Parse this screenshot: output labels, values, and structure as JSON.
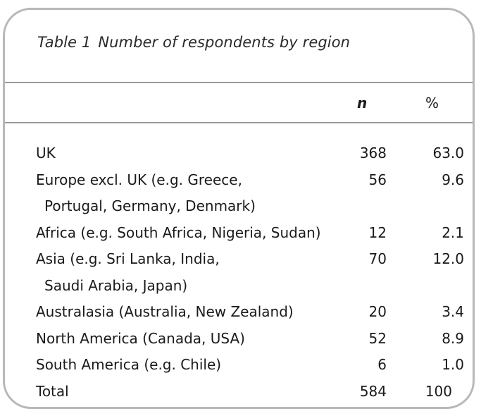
{
  "table": {
    "caption_number": "Table 1",
    "caption_title": "Number of respondents by region",
    "headers": {
      "region": "",
      "n": "n",
      "percent": "%"
    },
    "rows": [
      {
        "region_line1": "UK",
        "region_line2": "",
        "n": "368",
        "percent": "63.0"
      },
      {
        "region_line1": "Europe excl. UK (e.g. Greece,",
        "region_line2": "Portugal, Germany, Denmark)",
        "n": "56",
        "percent": "9.6"
      },
      {
        "region_line1": "Africa (e.g. South Africa, Nigeria, Sudan)",
        "region_line2": "",
        "n": "12",
        "percent": "2.1"
      },
      {
        "region_line1": "Asia (e.g. Sri Lanka, India,",
        "region_line2": "Saudi Arabia, Japan)",
        "n": "70",
        "percent": "12.0"
      },
      {
        "region_line1": "Australasia (Australia, New Zealand)",
        "region_line2": "",
        "n": "20",
        "percent": "3.4"
      },
      {
        "region_line1": "North America (Canada, USA)",
        "region_line2": "",
        "n": "52",
        "percent": "8.9"
      },
      {
        "region_line1": "South America (e.g. Chile)",
        "region_line2": "",
        "n": "6",
        "percent": "1.0"
      }
    ],
    "total": {
      "region": "Total",
      "n": "584",
      "percent": "100"
    }
  }
}
